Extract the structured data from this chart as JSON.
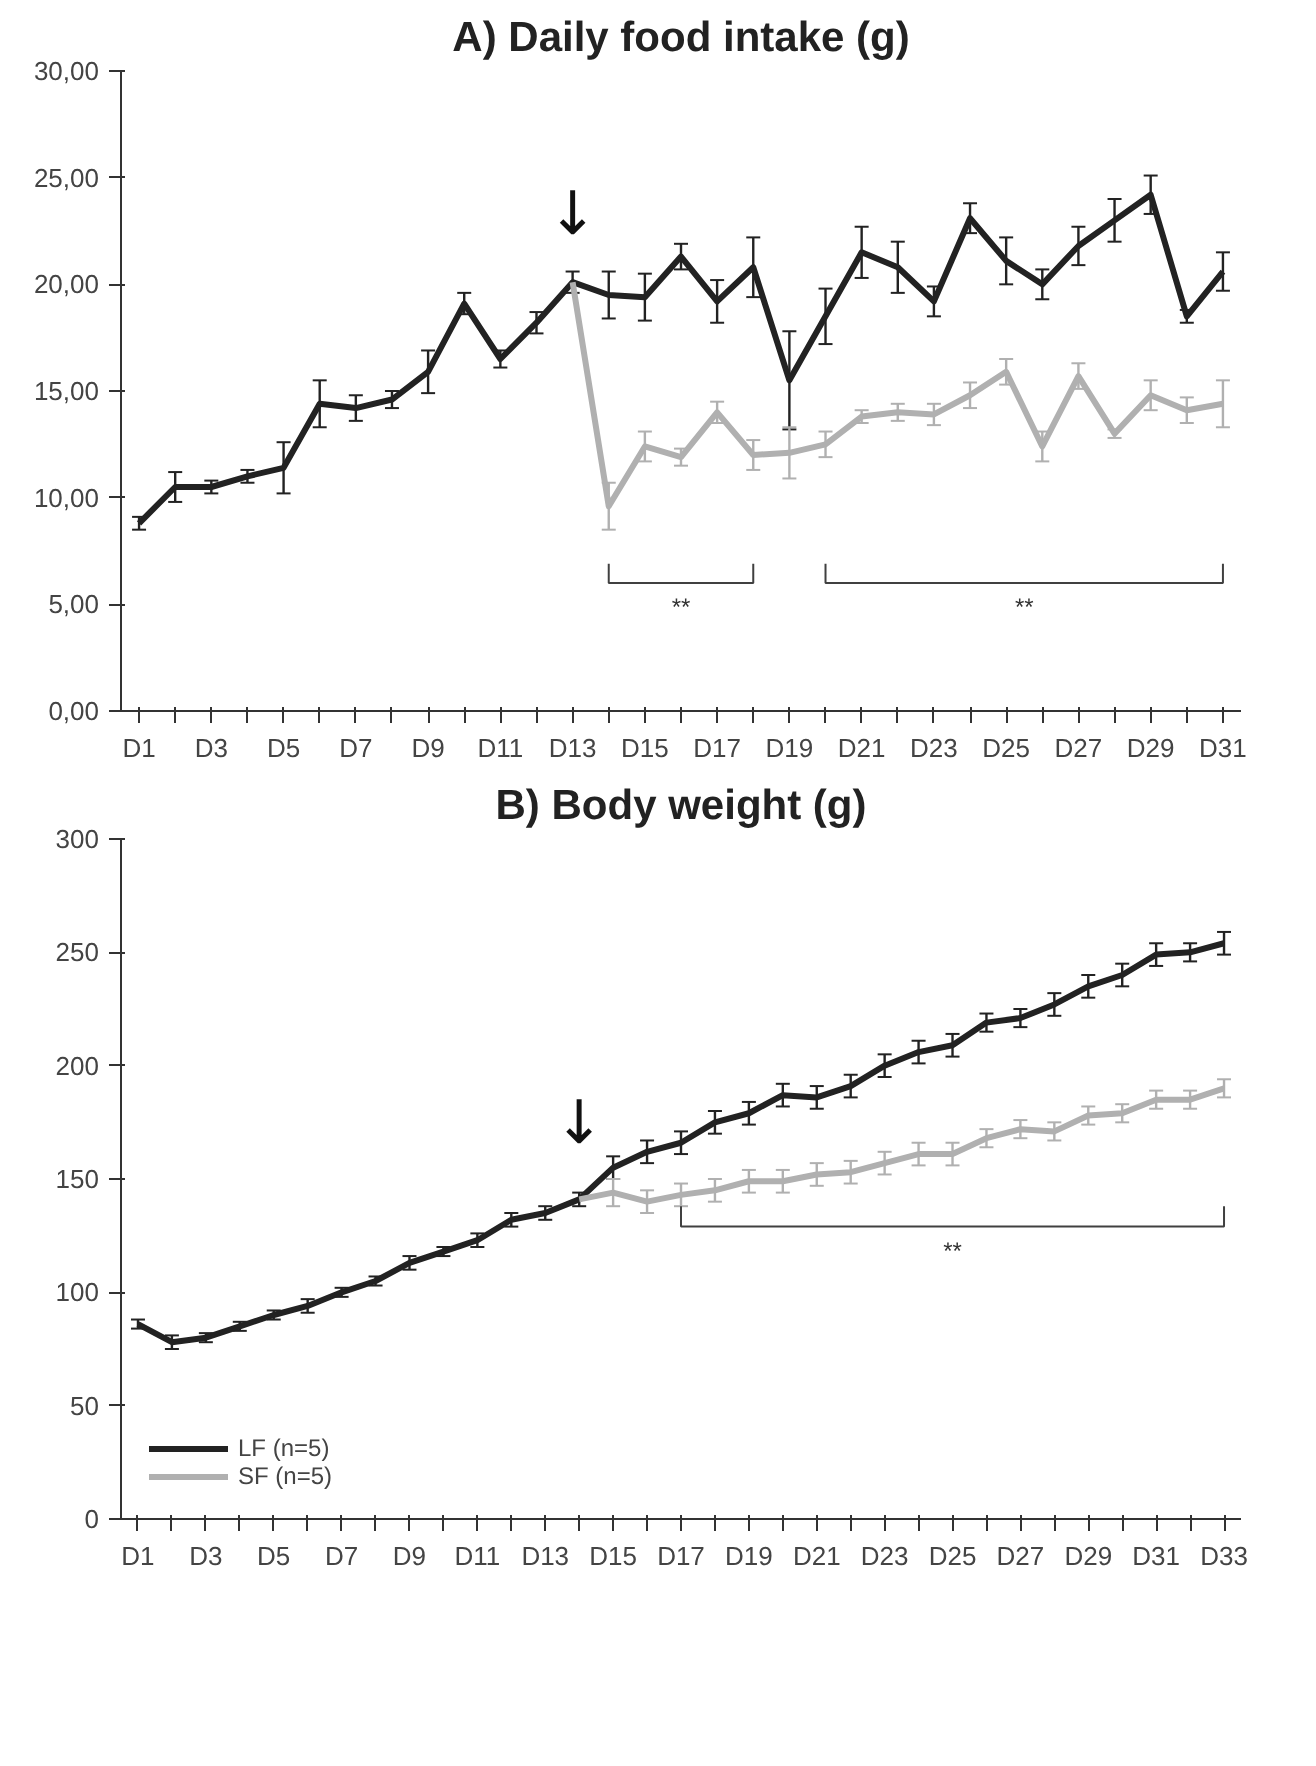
{
  "chart_data": [
    {
      "type": "line",
      "title": "A) Daily food intake (g)",
      "categories": [
        "D1",
        null,
        "D3",
        null,
        "D5",
        null,
        "D7",
        null,
        "D9",
        null,
        "D11",
        null,
        "D13",
        null,
        "D15",
        null,
        "D17",
        null,
        "D19",
        null,
        "D21",
        null,
        "D23",
        null,
        "D25",
        null,
        "D27",
        null,
        "D29",
        null,
        "D31"
      ],
      "ylim": [
        0,
        30
      ],
      "yticks": [
        {
          "value": 0,
          "label": "0,00"
        },
        {
          "value": 5,
          "label": "5,00"
        },
        {
          "value": 10,
          "label": "10,00"
        },
        {
          "value": 15,
          "label": "15,00"
        },
        {
          "value": 20,
          "label": "20,00"
        },
        {
          "value": 25,
          "label": "25,00"
        },
        {
          "value": 30,
          "label": "30,00"
        }
      ],
      "series": [
        {
          "color": "#222222",
          "values": [
            8.8,
            10.5,
            10.5,
            11.0,
            11.4,
            14.4,
            14.2,
            14.6,
            15.9,
            19.1,
            16.5,
            18.2,
            20.1,
            19.5,
            19.4,
            21.3,
            19.2,
            20.8,
            15.5,
            18.5,
            21.5,
            20.8,
            19.2,
            23.1,
            21.1,
            20.0,
            21.8,
            23.0,
            24.2,
            18.5,
            20.6
          ],
          "errors": [
            0.3,
            0.7,
            0.3,
            0.3,
            1.2,
            1.1,
            0.6,
            0.4,
            1.0,
            0.5,
            0.4,
            0.5,
            0.5,
            1.1,
            1.1,
            0.6,
            1.0,
            1.4,
            2.3,
            1.3,
            1.2,
            1.2,
            0.7,
            0.7,
            1.1,
            0.7,
            0.9,
            1.0,
            0.9,
            0.3,
            0.9
          ]
        },
        {
          "color": "#b0b0b0",
          "values": [
            null,
            null,
            null,
            null,
            null,
            null,
            null,
            null,
            null,
            null,
            null,
            null,
            20.1,
            9.6,
            12.4,
            11.9,
            14.0,
            12.0,
            12.1,
            12.5,
            13.8,
            14.0,
            13.9,
            14.8,
            15.9,
            12.4,
            15.7,
            13.0,
            14.8,
            14.1,
            14.4
          ],
          "errors": [
            null,
            null,
            null,
            null,
            null,
            null,
            null,
            null,
            null,
            null,
            null,
            null,
            null,
            1.1,
            0.7,
            0.4,
            0.5,
            0.7,
            1.2,
            0.6,
            0.3,
            0.4,
            0.5,
            0.6,
            0.6,
            0.7,
            0.6,
            0.2,
            0.7,
            0.6,
            1.1
          ]
        }
      ],
      "annotations": [
        "↓",
        "**",
        "**"
      ]
    },
    {
      "type": "line",
      "title": "B) Body weight (g)",
      "categories": [
        "D1",
        null,
        "D3",
        null,
        "D5",
        null,
        "D7",
        null,
        "D9",
        null,
        "D11",
        null,
        "D13",
        null,
        "D15",
        null,
        "D17",
        null,
        "D19",
        null,
        "D21",
        null,
        "D23",
        null,
        "D25",
        null,
        "D27",
        null,
        "D29",
        null,
        "D31",
        null,
        "D33"
      ],
      "ylim": [
        0,
        300
      ],
      "yticks": [
        0,
        50,
        100,
        150,
        200,
        250,
        300
      ],
      "legend": "bottom left",
      "series": [
        {
          "name": "LF (n=5)",
          "color": "#222222",
          "values": [
            86,
            78,
            80,
            85,
            90,
            94,
            100,
            105,
            113,
            118,
            123,
            132,
            135,
            141,
            155,
            162,
            166,
            175,
            179,
            187,
            186,
            191,
            200,
            206,
            209,
            219,
            221,
            227,
            235,
            240,
            249,
            250,
            254
          ],
          "errors": [
            2,
            3,
            2,
            2,
            2,
            3,
            2,
            2,
            3,
            2,
            3,
            3,
            3,
            3,
            5,
            5,
            5,
            5,
            5,
            5,
            5,
            5,
            5,
            5,
            5,
            4,
            4,
            5,
            5,
            5,
            5,
            4,
            5
          ]
        },
        {
          "name": "SF (n=5)",
          "color": "#b0b0b0",
          "values": [
            null,
            null,
            null,
            null,
            null,
            null,
            null,
            null,
            null,
            null,
            null,
            null,
            null,
            141,
            144,
            140,
            143,
            145,
            149,
            149,
            152,
            153,
            157,
            161,
            161,
            168,
            172,
            171,
            178,
            179,
            185,
            185,
            190
          ],
          "errors": [
            null,
            null,
            null,
            null,
            null,
            null,
            null,
            null,
            null,
            null,
            null,
            null,
            null,
            null,
            6,
            5,
            5,
            5,
            5,
            5,
            5,
            5,
            5,
            5,
            5,
            4,
            4,
            4,
            4,
            4,
            4,
            4,
            4
          ]
        }
      ],
      "annotations": [
        "↓",
        "**"
      ]
    }
  ]
}
